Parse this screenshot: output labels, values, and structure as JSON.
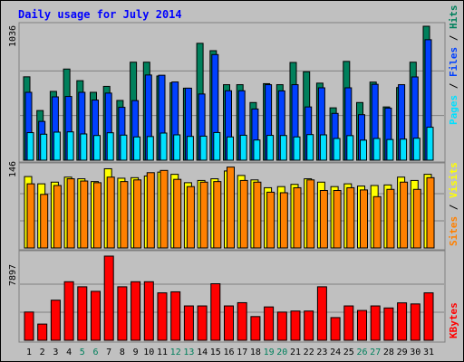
{
  "title": "Daily usage for July 2014",
  "colors": {
    "background": "#c0c0c0",
    "title": "#0000ff",
    "hits": "#00805c",
    "files": "#0040ff",
    "pages": "#00e0ff",
    "visits": "#ffff00",
    "sites": "#ff8000",
    "kbytes": "#ff0000",
    "weekend_label": "#00805c",
    "weekday_label": "#000000"
  },
  "chart_data": [
    {
      "type": "bar",
      "panel": "top",
      "scale_max_label": "1036",
      "ylim": [
        0,
        1036
      ],
      "categories": [
        "1",
        "2",
        "3",
        "4",
        "5",
        "6",
        "7",
        "8",
        "9",
        "10",
        "11",
        "12",
        "13",
        "14",
        "15",
        "16",
        "17",
        "18",
        "19",
        "20",
        "21",
        "22",
        "23",
        "24",
        "25",
        "26",
        "27",
        "28",
        "29",
        "30",
        "31"
      ],
      "weekend_days": [
        "5",
        "6",
        "12",
        "13",
        "19",
        "20",
        "26",
        "27"
      ],
      "legend": [
        "Pages",
        "Files",
        "Hits"
      ],
      "series": [
        {
          "name": "Hits",
          "values": [
            645,
            384,
            532,
            705,
            615,
            525,
            571,
            462,
            758,
            758,
            651,
            599,
            557,
            904,
            847,
            584,
            584,
            446,
            592,
            584,
            756,
            684,
            596,
            405,
            764,
            446,
            604,
            412,
            562,
            758,
            1036
          ]
        },
        {
          "name": "Files",
          "values": [
            525,
            300,
            490,
            493,
            525,
            465,
            519,
            409,
            461,
            659,
            657,
            605,
            557,
            512,
            817,
            537,
            537,
            396,
            584,
            536,
            584,
            412,
            560,
            362,
            560,
            352,
            587,
            403,
            584,
            644,
            932
          ]
        },
        {
          "name": "Pages",
          "values": [
            213,
            201,
            217,
            219,
            203,
            191,
            212,
            194,
            180,
            183,
            210,
            196,
            184,
            186,
            214,
            180,
            193,
            156,
            192,
            191,
            180,
            198,
            196,
            168,
            190,
            155,
            168,
            160,
            163,
            170,
            255
          ]
        }
      ]
    },
    {
      "type": "bar",
      "panel": "middle",
      "scale_max_label": "146",
      "ylim": [
        0,
        146
      ],
      "categories": [
        "1",
        "2",
        "3",
        "4",
        "5",
        "6",
        "7",
        "8",
        "9",
        "10",
        "11",
        "12",
        "13",
        "14",
        "15",
        "16",
        "17",
        "18",
        "19",
        "20",
        "21",
        "22",
        "23",
        "24",
        "25",
        "26",
        "27",
        "28",
        "29",
        "30",
        "31"
      ],
      "legend": [
        "Sites",
        "Visits"
      ],
      "series": [
        {
          "name": "Visits",
          "values": [
            128,
            115,
            118,
            127,
            124,
            119,
            142,
            125,
            126,
            129,
            136,
            132,
            117,
            121,
            124,
            138,
            130,
            122,
            108,
            110,
            114,
            124,
            118,
            110,
            115,
            111,
            112,
            113,
            127,
            121,
            132
          ]
        },
        {
          "name": "Sites",
          "values": [
            115,
            96,
            112,
            124,
            120,
            117,
            127,
            119,
            122,
            135,
            139,
            123,
            110,
            118,
            119,
            145,
            121,
            118,
            100,
            99,
            108,
            122,
            103,
            103,
            108,
            104,
            92,
            105,
            118,
            105,
            126
          ]
        }
      ]
    },
    {
      "type": "bar",
      "panel": "bottom",
      "scale_max_label": "7897",
      "ylim": [
        0,
        7897
      ],
      "categories": [
        "1",
        "2",
        "3",
        "4",
        "5",
        "6",
        "7",
        "8",
        "9",
        "10",
        "11",
        "12",
        "13",
        "14",
        "15",
        "16",
        "17",
        "18",
        "19",
        "20",
        "21",
        "22",
        "23",
        "24",
        "25",
        "26",
        "27",
        "28",
        "29",
        "30",
        "31"
      ],
      "legend": [
        "KBytes"
      ],
      "series": [
        {
          "name": "KBytes",
          "values": [
            2651,
            1520,
            3763,
            5493,
            5019,
            4592,
            7897,
            5019,
            5493,
            5493,
            4450,
            4547,
            3224,
            3224,
            5305,
            3224,
            3528,
            2224,
            3130,
            2644,
            2744,
            2744,
            5019,
            2130,
            3224,
            2797,
            3224,
            3034,
            3511,
            3411,
            4450
          ]
        }
      ]
    }
  ]
}
